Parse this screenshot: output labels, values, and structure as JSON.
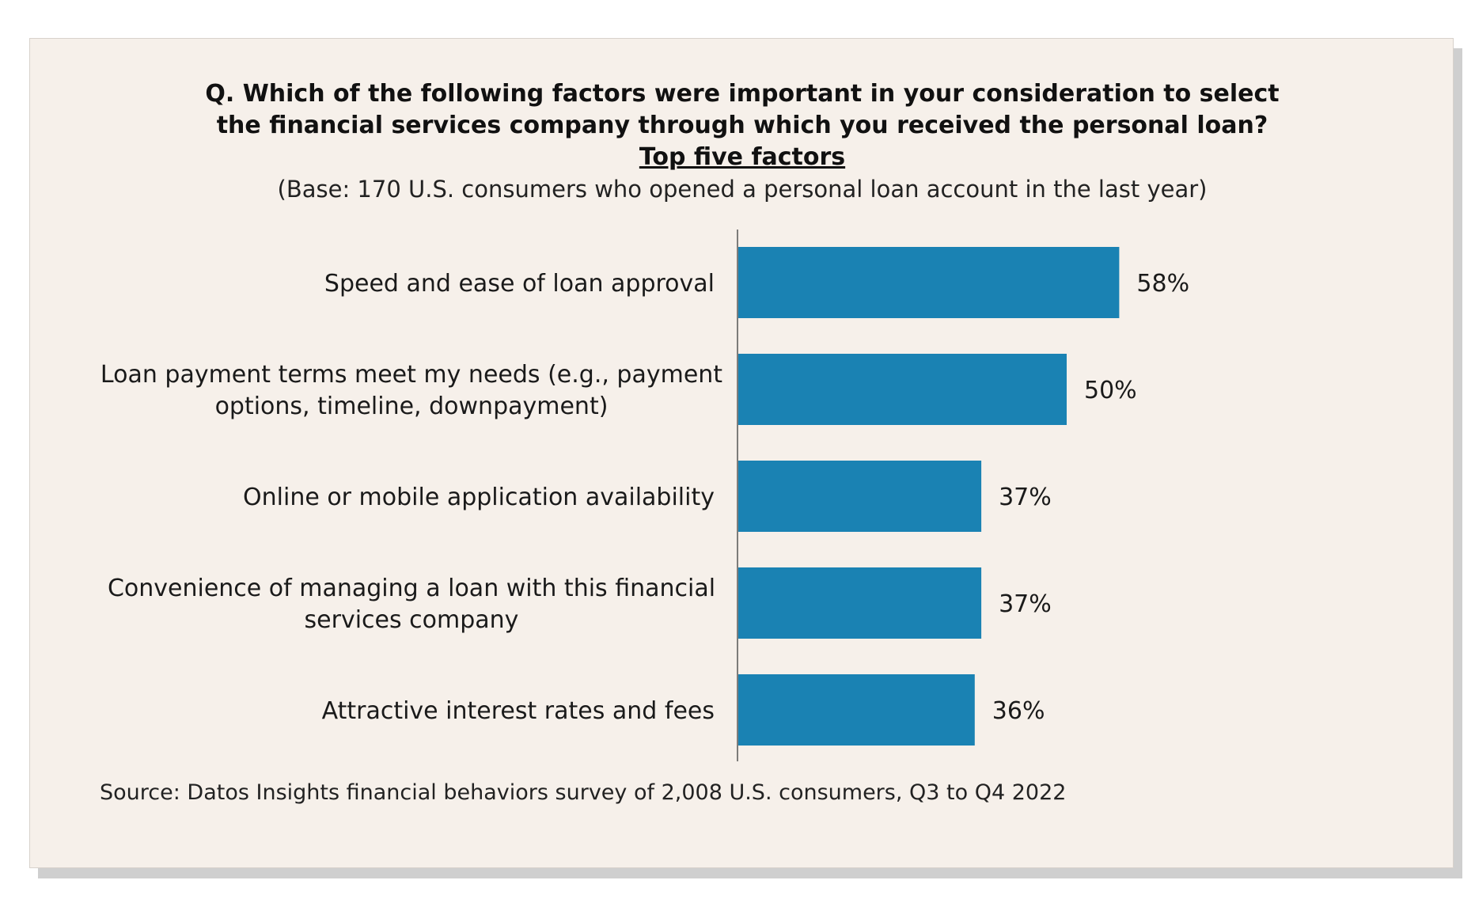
{
  "question": {
    "line1": "Q. Which of the following factors were important in your consideration to select",
    "line2": "the financial services company through which you received the personal loan?",
    "subtitle": "Top five factors"
  },
  "base_note": "(Base: 170 U.S. consumers who opened a personal loan account in the last year)",
  "source": "Source: Datos Insights financial behaviors survey of 2,008 U.S. consumers, Q3 to Q4 2022",
  "colors": {
    "bar": "#1a82b3",
    "background": "#f6f0ea",
    "axis": "#555555"
  },
  "chart_data": {
    "type": "bar",
    "orientation": "horizontal",
    "categories": [
      [
        "Speed and ease of loan approval"
      ],
      [
        "Loan payment terms meet my needs (e.g., payment",
        "options, timeline, downpayment)"
      ],
      [
        "Online or mobile application availability"
      ],
      [
        "Convenience of managing a loan with this financial",
        "services company"
      ],
      [
        "Attractive interest rates and fees"
      ]
    ],
    "values": [
      58,
      50,
      37,
      37,
      36
    ],
    "value_labels": [
      "58%",
      "50%",
      "37%",
      "37%",
      "36%"
    ],
    "xlim": [
      0,
      100
    ],
    "grid": false
  }
}
